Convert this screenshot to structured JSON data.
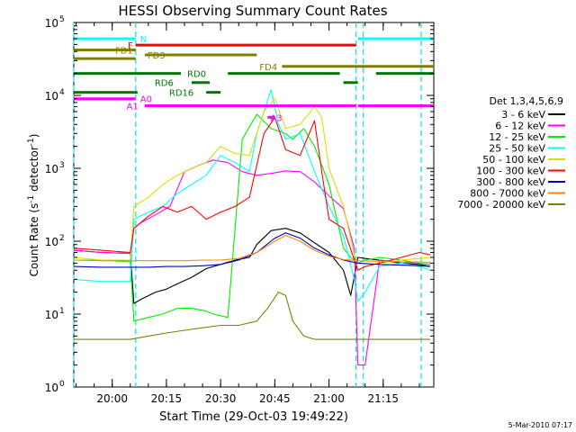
{
  "chart_data": {
    "type": "line",
    "title": "HESSI Observing Summary Count Rates",
    "xlabel": "Start Time (29-Oct-03 19:49:22)",
    "ylabel": "Count Rate (s",
    "ylabel_sup": "-1",
    "ylabel_tail": " detector",
    "ylabel_end": ")",
    "footer": "5-Mar-2010 07:17",
    "y_scale": "log",
    "ylim": [
      1,
      100000
    ],
    "xlim": [
      "19:49:22",
      "21:29:00"
    ],
    "y_ticks": [
      {
        "value": 1,
        "base": "10",
        "exp": "0"
      },
      {
        "value": 10,
        "base": "10",
        "exp": "1"
      },
      {
        "value": 100,
        "base": "10",
        "exp": "2"
      },
      {
        "value": 1000,
        "base": "10",
        "exp": "3"
      },
      {
        "value": 10000,
        "base": "10",
        "exp": "4"
      },
      {
        "value": 100000,
        "base": "10",
        "exp": "5"
      }
    ],
    "x_ticks": [
      "20:00",
      "20:15",
      "20:30",
      "20:45",
      "21:00",
      "21:15"
    ],
    "grid": false,
    "legend_position": "right",
    "legend_title": "Det 1,3,4,5,6,9",
    "series": [
      {
        "name": "3 - 6 keV",
        "color": "#000000",
        "x": [
          "19:49:22",
          "19:57:00",
          "20:05:00",
          "20:06:00",
          "20:08:00",
          "20:12:00",
          "20:15:00",
          "20:18:00",
          "20:22:00",
          "20:26:00",
          "20:30:00",
          "20:34:00",
          "20:38:00",
          "20:40:00",
          "20:44:00",
          "20:48:00",
          "20:52:00",
          "20:56:00",
          "21:00:00",
          "21:04:00",
          "21:06:00",
          "21:08:00",
          "21:10:00",
          "21:14:00",
          "21:20:00",
          "21:25:00",
          "21:28:00"
        ],
        "y": [
          75,
          70,
          68,
          14,
          16,
          20,
          22,
          26,
          32,
          42,
          48,
          55,
          60,
          90,
          140,
          150,
          130,
          95,
          70,
          40,
          18,
          60,
          58,
          55,
          50,
          48,
          45
        ]
      },
      {
        "name": "6 - 12 keV",
        "color": "#ff00ff",
        "x": [
          "19:49:22",
          "19:57:00",
          "20:05:00",
          "20:06:00",
          "20:08:00",
          "20:12:00",
          "20:16:00",
          "20:20:00",
          "20:24:00",
          "20:28:00",
          "20:32:00",
          "20:36:00",
          "20:40:00",
          "20:44:00",
          "20:48:00",
          "20:52:00",
          "20:56:00",
          "21:00:00",
          "21:04:00",
          "21:07:00",
          "21:08:00",
          "21:10:00",
          "21:14:00",
          "21:20:00",
          "21:25:00",
          "21:28:00"
        ],
        "y": [
          75,
          70,
          68,
          150,
          180,
          230,
          300,
          900,
          1100,
          1300,
          1200,
          900,
          800,
          850,
          920,
          900,
          650,
          420,
          280,
          80,
          2,
          2,
          55,
          52,
          50,
          48
        ]
      },
      {
        "name": "12 - 25 keV",
        "color": "#00ee00",
        "x": [
          "19:49:22",
          "19:57:00",
          "20:05:00",
          "20:06:00",
          "20:10:00",
          "20:14:00",
          "20:18:00",
          "20:22:00",
          "20:26:00",
          "20:28:00",
          "20:32:00",
          "20:36:00",
          "20:40:00",
          "20:44:00",
          "20:48:00",
          "20:50:00",
          "20:53:00",
          "20:56:00",
          "21:00:00",
          "21:04:00",
          "21:06:00",
          "21:08:00",
          "21:10:00",
          "21:14:00",
          "21:20:00",
          "21:25:00",
          "21:28:00"
        ],
        "y": [
          55,
          55,
          52,
          8,
          9,
          10,
          12,
          12,
          11,
          10,
          9,
          2500,
          5500,
          3500,
          3000,
          2500,
          3500,
          2000,
          600,
          80,
          60,
          50,
          55,
          60,
          55,
          50,
          48
        ]
      },
      {
        "name": "25 - 50 keV",
        "color": "#00ffff",
        "x": [
          "19:49:22",
          "19:57:00",
          "20:05:00",
          "20:06:00",
          "20:10:00",
          "20:14:00",
          "20:18:00",
          "20:22:00",
          "20:26:00",
          "20:30:00",
          "20:34:00",
          "20:38:00",
          "20:40:00",
          "20:44:00",
          "20:46:00",
          "20:48:00",
          "20:52:00",
          "20:56:00",
          "21:00:00",
          "21:04:00",
          "21:07:00",
          "21:08:00",
          "21:10:00",
          "21:14:00",
          "21:20:00",
          "21:25:00",
          "21:28:00"
        ],
        "y": [
          30,
          28,
          28,
          200,
          250,
          300,
          450,
          600,
          800,
          1500,
          1200,
          900,
          3000,
          12000,
          4000,
          2500,
          3000,
          900,
          300,
          120,
          30,
          15,
          20,
          45,
          50,
          45,
          40
        ]
      },
      {
        "name": "50 - 100 keV",
        "color": "#dddd00",
        "x": [
          "19:49:22",
          "19:57:00",
          "20:05:00",
          "20:06:00",
          "20:10:00",
          "20:14:00",
          "20:18:00",
          "20:22:00",
          "20:26:00",
          "20:30:00",
          "20:34:00",
          "20:38:00",
          "20:42:00",
          "20:45:00",
          "20:48:00",
          "20:52:00",
          "20:56:00",
          "20:58:00",
          "21:00:00",
          "21:04:00",
          "21:08:00",
          "21:10:00",
          "21:14:00",
          "21:20:00",
          "21:25:00",
          "21:28:00"
        ],
        "y": [
          60,
          55,
          55,
          300,
          400,
          600,
          800,
          1000,
          1200,
          2000,
          1600,
          1500,
          6000,
          9000,
          3500,
          4000,
          7000,
          5000,
          1000,
          300,
          40,
          45,
          50,
          55,
          58,
          60
        ]
      },
      {
        "name": "100 - 300 keV",
        "color": "#ff0000",
        "x": [
          "19:49:22",
          "19:57:00",
          "20:05:00",
          "20:06:00",
          "20:10:00",
          "20:14:00",
          "20:18:00",
          "20:22:00",
          "20:26:00",
          "20:30:00",
          "20:34:00",
          "20:38:00",
          "20:42:00",
          "20:45:00",
          "20:48:00",
          "20:52:00",
          "20:56:00",
          "20:58:00",
          "21:00:00",
          "21:04:00",
          "21:08:00",
          "21:10:00",
          "21:14:00",
          "21:20:00",
          "21:25:00",
          "21:28:00"
        ],
        "y": [
          80,
          75,
          70,
          150,
          220,
          300,
          250,
          300,
          200,
          250,
          300,
          400,
          3000,
          5000,
          1800,
          1500,
          4500,
          900,
          200,
          150,
          40,
          45,
          50,
          60,
          70,
          65
        ]
      },
      {
        "name": "300 - 800 keV",
        "color": "#0000cc",
        "x": [
          "19:49:22",
          "19:57:00",
          "20:05:00",
          "20:10:00",
          "20:15:00",
          "20:20:00",
          "20:25:00",
          "20:30:00",
          "20:35:00",
          "20:40:00",
          "20:45:00",
          "20:48:00",
          "20:52:00",
          "20:56:00",
          "21:00:00",
          "21:04:00",
          "21:08:00",
          "21:14:00",
          "21:20:00",
          "21:25:00",
          "21:28:00"
        ],
        "y": [
          45,
          44,
          44,
          44,
          45,
          45,
          46,
          48,
          55,
          70,
          110,
          130,
          110,
          80,
          65,
          55,
          50,
          48,
          47,
          46,
          45
        ]
      },
      {
        "name": "800 - 7000 keV",
        "color": "#ff8800",
        "x": [
          "19:49:22",
          "19:57:00",
          "20:05:00",
          "20:10:00",
          "20:15:00",
          "20:20:00",
          "20:25:00",
          "20:30:00",
          "20:35:00",
          "20:40:00",
          "20:45:00",
          "20:48:00",
          "20:52:00",
          "20:56:00",
          "21:00:00",
          "21:04:00",
          "21:08:00",
          "21:14:00",
          "21:20:00",
          "21:25:00",
          "21:28:00"
        ],
        "y": [
          55,
          54,
          54,
          54,
          54,
          54,
          55,
          55,
          58,
          70,
          100,
          120,
          100,
          75,
          62,
          56,
          54,
          53,
          52,
          52,
          51
        ]
      },
      {
        "name": "7000 - 20000 keV",
        "color": "#808000",
        "x": [
          "19:49:22",
          "19:57:00",
          "20:05:00",
          "20:10:00",
          "20:15:00",
          "20:20:00",
          "20:25:00",
          "20:30:00",
          "20:35:00",
          "20:40:00",
          "20:43:00",
          "20:46:00",
          "20:48:00",
          "20:50:00",
          "20:53:00",
          "20:56:00",
          "21:00:00",
          "21:04:00",
          "21:08:00",
          "21:14:00",
          "21:20:00",
          "21:25:00",
          "21:28:00"
        ],
        "y": [
          4.5,
          4.5,
          4.5,
          5,
          5.5,
          6,
          6.5,
          7,
          7,
          8,
          12,
          20,
          18,
          8,
          5,
          4.5,
          4.5,
          4.5,
          4.5,
          4.5,
          4.5,
          4.5,
          4.5
        ]
      }
    ],
    "attenuator_segments": [
      {
        "start": "20:06:30",
        "end": "21:07:30"
      },
      {
        "start": "21:09:30",
        "end": "21:10:30"
      }
    ],
    "cyan_vlines": [
      "19:49:22",
      "20:06:30",
      "21:07:30",
      "21:09:30",
      "21:25:30"
    ],
    "flag_bars": [
      {
        "label": "N",
        "color": "#00ffff",
        "y": 60000,
        "start": "19:49:22",
        "end": "20:06:30",
        "label_at": "20:07:00",
        "label_side": "after"
      },
      {
        "label": "",
        "color": "#00ffff",
        "y": 60000,
        "start": "21:08:00",
        "end": "21:29:00"
      },
      {
        "label": "F",
        "color": "#ff0000",
        "y": 49000,
        "start": "20:06:30",
        "end": "21:07:30",
        "label_at": "20:06:30",
        "label_side": "before"
      },
      {
        "label": "FD1",
        "color": "#808000",
        "y": 42000,
        "start": "19:49:22",
        "end": "20:06:30",
        "label_at": "20:06:30",
        "label_side": "before"
      },
      {
        "label": "FD3",
        "color": "#808000",
        "y": 36000,
        "start": "20:09:00",
        "end": "20:40:00",
        "label_at": "20:09:00",
        "label_side": "after"
      },
      {
        "label": "",
        "color": "#808000",
        "y": 32000,
        "start": "19:49:22",
        "end": "20:06:30"
      },
      {
        "label": "FD4",
        "color": "#808000",
        "y": 25000,
        "start": "20:47:00",
        "end": "21:29:00",
        "label_at": "20:40:00",
        "label_side": "after"
      },
      {
        "label": "RD0",
        "color": "#007700",
        "y": 20000,
        "start": "19:49:22",
        "end": "20:19:00",
        "label_at": "20:20:00",
        "label_side": "after"
      },
      {
        "label": "",
        "color": "#007700",
        "y": 20000,
        "start": "20:32:00",
        "end": "21:03:00"
      },
      {
        "label": "",
        "color": "#007700",
        "y": 20000,
        "start": "21:13:00",
        "end": "21:29:00"
      },
      {
        "label": "RD6",
        "color": "#007700",
        "y": 15000,
        "start": "20:22:00",
        "end": "20:27:00",
        "label_at": "20:11:00",
        "label_side": "after"
      },
      {
        "label": "",
        "color": "#007700",
        "y": 15000,
        "start": "21:04:00",
        "end": "21:08:00"
      },
      {
        "label": "RD16",
        "color": "#007700",
        "y": 11000,
        "start": "20:26:00",
        "end": "20:30:00",
        "label_at": "20:15:00",
        "label_side": "after"
      },
      {
        "label": "",
        "color": "#007700",
        "y": 11000,
        "start": "19:49:22",
        "end": "20:07:00"
      },
      {
        "label": "A0",
        "color": "#ff00ff",
        "y": 9000,
        "start": "19:49:22",
        "end": "20:06:30",
        "label_at": "20:07:00",
        "label_side": "after"
      },
      {
        "label": "A1",
        "color": "#ff00ff",
        "y": 7200,
        "start": "20:09:00",
        "end": "21:07:30",
        "label_at": "20:08:00",
        "label_side": "before"
      },
      {
        "label": "",
        "color": "#ff00ff",
        "y": 7200,
        "start": "21:08:00",
        "end": "21:29:00"
      },
      {
        "label": "A3",
        "color": "#ff00ff",
        "y": 5000,
        "start": "20:43:00",
        "end": "20:45:00",
        "label_at": "20:43:00",
        "label_side": "after"
      }
    ]
  }
}
